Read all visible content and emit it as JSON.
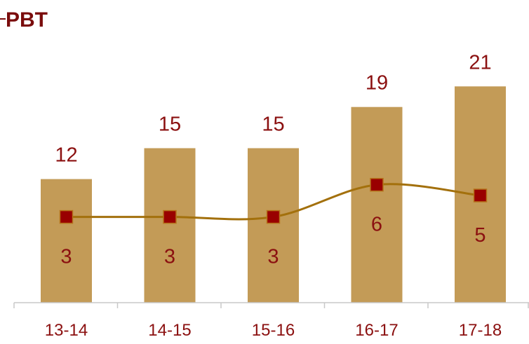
{
  "colors": {
    "bar": "#c39b57",
    "line": "#a3700c",
    "marker": "#990000",
    "marker_stroke": "#b5721a",
    "axis": "#c8c8c8"
  },
  "chart_data": {
    "type": "bar",
    "title": "PBT",
    "categories": [
      "13-14",
      "14-15",
      "15-16",
      "16-17",
      "17-18"
    ],
    "series": [
      {
        "type": "bar",
        "values": [
          12,
          15,
          15,
          19,
          21
        ]
      },
      {
        "type": "line",
        "values": [
          3,
          3,
          3,
          6,
          5
        ],
        "marker": "square",
        "smooth": true
      }
    ],
    "data_labels": true,
    "grid": false,
    "legend": "none"
  }
}
